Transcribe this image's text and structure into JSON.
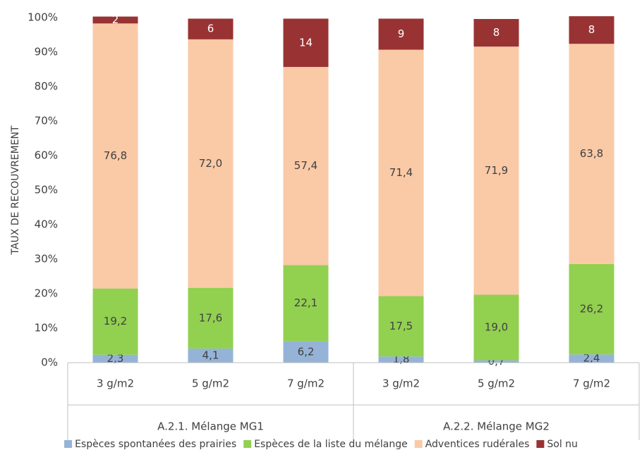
{
  "chart_data": {
    "type": "bar",
    "stacked": true,
    "y_label": "TAUX DE RECOUVREMENT",
    "categories": [
      "3 g/m2",
      "5 g/m2",
      "7 g/m2",
      "3 g/m2",
      "5 g/m2",
      "7 g/m2"
    ],
    "groups": [
      "A.2.1. Mélange MG1",
      "A.2.2. Mélange MG2"
    ],
    "series": [
      {
        "name": "Espèces spontanées des prairies",
        "color": "#95b3d7",
        "values": [
          2.3,
          4.1,
          6.2,
          1.8,
          0.7,
          2.4
        ],
        "value_labels": [
          "2,3",
          "4,1",
          "6,2",
          "1,8",
          "0,7",
          "2,4"
        ]
      },
      {
        "name": "Espèces de la liste du mélange",
        "color": "#92d050",
        "values": [
          19.2,
          17.6,
          22.1,
          17.5,
          19.0,
          26.2
        ],
        "value_labels": [
          "19,2",
          "17,6",
          "22,1",
          "17,5",
          "19,0",
          "26,2"
        ]
      },
      {
        "name": "Adventices rudérales",
        "color": "#fac9a6",
        "values": [
          76.8,
          72.0,
          57.4,
          71.4,
          71.9,
          63.8
        ],
        "value_labels": [
          "76,8",
          "72,0",
          "57,4",
          "71,4",
          "71,9",
          "63,8"
        ]
      },
      {
        "name": "Sol nu",
        "color": "#993333",
        "values": [
          2,
          6,
          14,
          9,
          8,
          8
        ]
      }
    ],
    "ylim": [
      0,
      100
    ],
    "yticks": [
      {
        "value": 0,
        "label": "0%"
      },
      {
        "value": 10,
        "label": "10%"
      },
      {
        "value": 20,
        "label": "20%"
      },
      {
        "value": 30,
        "label": "30%"
      },
      {
        "value": 40,
        "label": "40%"
      },
      {
        "value": 50,
        "label": "50%"
      },
      {
        "value": 60,
        "label": "60%"
      },
      {
        "value": 70,
        "label": "70%"
      },
      {
        "value": 80,
        "label": "80%"
      },
      {
        "value": 90,
        "label": "90%"
      },
      {
        "value": 100,
        "label": "100%"
      }
    ],
    "grid": false,
    "legend": "bottom"
  }
}
